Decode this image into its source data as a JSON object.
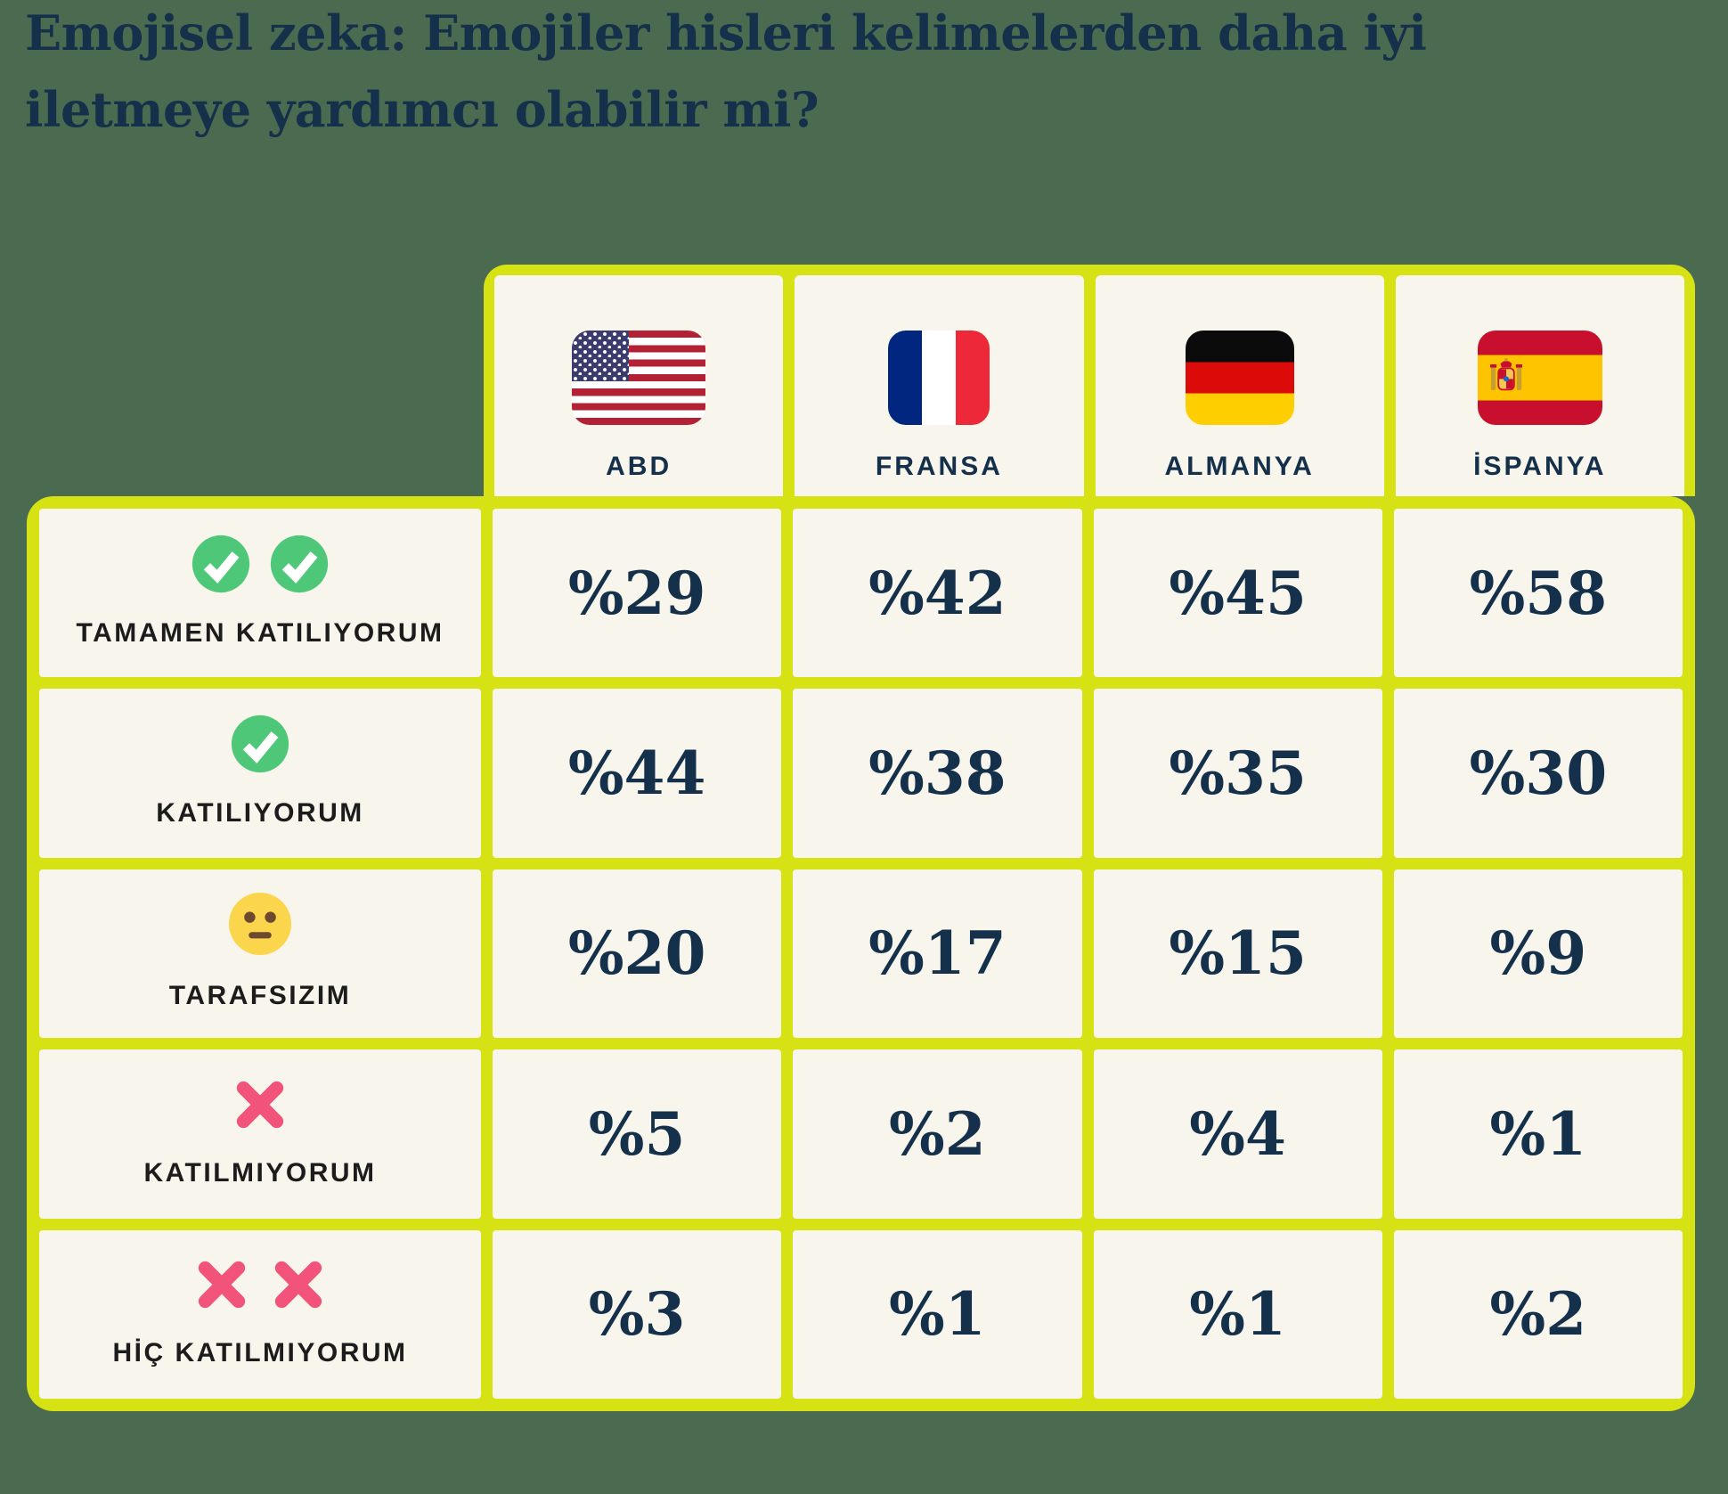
{
  "title": "Emojisel zeka: Emojiler hisleri kelimelerden daha iyi iletmeye yardımcı olabilir mi?",
  "columns": [
    {
      "id": "abd",
      "label": "ABD",
      "flag_icon": "usa-flag-icon"
    },
    {
      "id": "fransa",
      "label": "FRANSA",
      "flag_icon": "france-flag-icon"
    },
    {
      "id": "almanya",
      "label": "ALMANYA",
      "flag_icon": "germany-flag-icon"
    },
    {
      "id": "ispanya",
      "label": "İSPANYA",
      "flag_icon": "spain-flag-icon"
    }
  ],
  "rows": [
    {
      "id": "tamamen-katiliyorum",
      "label": "TAMAMEN KATILIYORUM",
      "icon": "check-circle-icon",
      "icon_count": 2,
      "values": [
        "%29",
        "%42",
        "%45",
        "%58"
      ]
    },
    {
      "id": "katiliyorum",
      "label": "KATILIYORUM",
      "icon": "check-circle-icon",
      "icon_count": 1,
      "values": [
        "%44",
        "%38",
        "%35",
        "%30"
      ]
    },
    {
      "id": "tarafsizim",
      "label": "TARAFSIZIM",
      "icon": "neutral-face-icon",
      "icon_count": 1,
      "values": [
        "%20",
        "%17",
        "%15",
        "%9"
      ]
    },
    {
      "id": "katilmiyorum",
      "label": "KATILMIYORUM",
      "icon": "cross-mark-icon",
      "icon_count": 1,
      "values": [
        "%5",
        "%2",
        "%4",
        "%1"
      ]
    },
    {
      "id": "hic-katilmiyorum",
      "label": "HİÇ KATILMIYORUM",
      "icon": "cross-mark-icon",
      "icon_count": 2,
      "values": [
        "%3",
        "%1",
        "%1",
        "%2"
      ]
    }
  ],
  "colors": {
    "background": "#4a6b50",
    "grid": "#d7e214",
    "cell": "#f7f5ec",
    "navy_text": "#14304a",
    "row_label_text": "#1c1c1c",
    "check_green": "#4ec878",
    "cross_pink": "#f2537b",
    "face_yellow": "#fbd54b",
    "face_features": "#6d4a2f"
  },
  "chart_data": {
    "type": "table",
    "title": "Emojisel zeka: Emojiler hisleri kelimelerden daha iyi iletmeye yardımcı olabilir mi?",
    "columns": [
      "ABD",
      "FRANSA",
      "ALMANYA",
      "İSPANYA"
    ],
    "rows": [
      "TAMAMEN KATILIYORUM",
      "KATILIYORUM",
      "TARAFSIZIM",
      "KATILMIYORUM",
      "HİÇ KATILMIYORUM"
    ],
    "row_icons": [
      "check-circle x2",
      "check-circle x1",
      "neutral-face",
      "cross-mark x1",
      "cross-mark x2"
    ],
    "values_percent": [
      [
        29,
        42,
        45,
        58
      ],
      [
        44,
        38,
        35,
        30
      ],
      [
        20,
        17,
        15,
        9
      ],
      [
        5,
        2,
        4,
        1
      ],
      [
        3,
        1,
        1,
        2
      ]
    ],
    "value_format": "%N (percent sign precedes number, Turkish style)"
  }
}
